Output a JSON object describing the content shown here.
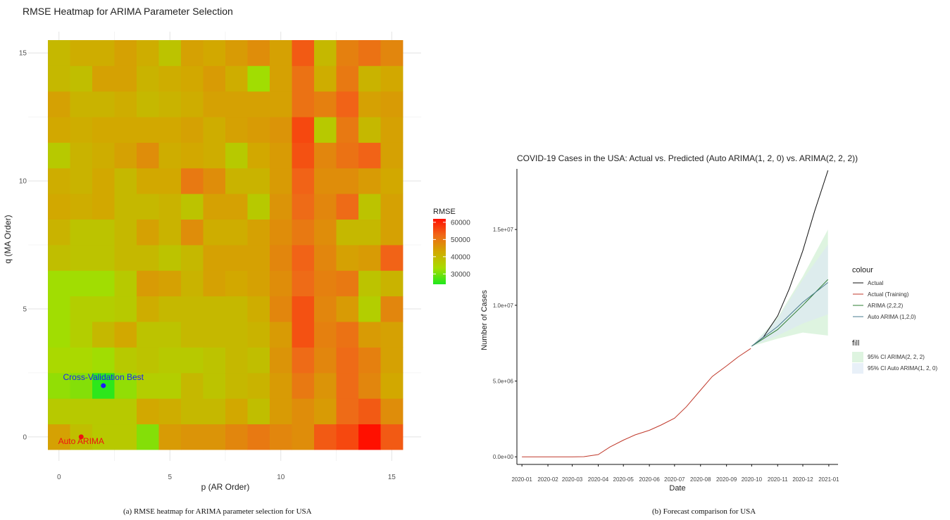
{
  "chart_data": [
    {
      "type": "heatmap",
      "title": "RMSE Heatmap for ARIMA Parameter Selection",
      "xlabel": "p (AR Order)",
      "ylabel": "q (MA Order)",
      "xlim": [
        -0.5,
        15.5
      ],
      "ylim": [
        -0.5,
        15.5
      ],
      "xticks": [
        0,
        5,
        10,
        15
      ],
      "yticks": [
        0,
        5,
        10,
        15
      ],
      "grid": true,
      "legend": {
        "title": "RMSE",
        "position": "right",
        "range": [
          24000,
          62000
        ],
        "ticks": [
          30000,
          40000,
          50000,
          60000
        ],
        "colors": [
          "#1ee81e",
          "#a8dc00",
          "#d2a800",
          "#f06818",
          "#ff1000"
        ]
      },
      "values_note_rows": "rows are q = 0..15 (bottom to top), columns are p = 0..15 (left to right)",
      "values": [
        [
          44000,
          39000,
          37000,
          37000,
          31000,
          45000,
          46000,
          46000,
          48000,
          50000,
          48000,
          47000,
          54000,
          56000,
          62000,
          54000
        ],
        [
          37000,
          37000,
          37000,
          37000,
          43000,
          42000,
          40000,
          40000,
          43000,
          39000,
          45000,
          47000,
          45000,
          52000,
          54000,
          47000
        ],
        [
          32000,
          31000,
          25000,
          32000,
          36000,
          36000,
          40000,
          38000,
          40000,
          41000,
          45000,
          50000,
          46000,
          52000,
          48000,
          43000
        ],
        [
          34000,
          34000,
          33000,
          37000,
          38000,
          37000,
          37000,
          38000,
          40000,
          39000,
          46000,
          52000,
          48000,
          52000,
          49000,
          44000
        ],
        [
          33000,
          36000,
          40000,
          43000,
          38000,
          38000,
          40000,
          40000,
          40000,
          41000,
          45000,
          55000,
          49000,
          51000,
          45000,
          44000
        ],
        [
          33000,
          36000,
          36000,
          37000,
          42000,
          40000,
          40000,
          40000,
          40000,
          42000,
          48000,
          55000,
          48000,
          45000,
          36000,
          48000
        ],
        [
          33000,
          33000,
          33000,
          37000,
          45000,
          44000,
          41000,
          44000,
          43000,
          44000,
          47000,
          52000,
          49000,
          50000,
          38000,
          41000
        ],
        [
          39000,
          38000,
          38000,
          40000,
          40000,
          38000,
          40000,
          44000,
          44000,
          44000,
          48000,
          53000,
          48000,
          44000,
          45000,
          53000
        ],
        [
          41000,
          38000,
          38000,
          40000,
          44000,
          41000,
          47000,
          42000,
          42000,
          44000,
          47000,
          50000,
          47000,
          40000,
          40000,
          44000
        ],
        [
          43000,
          42000,
          43000,
          40000,
          40000,
          41000,
          38000,
          44000,
          44000,
          37000,
          46000,
          52000,
          48000,
          52000,
          38000,
          44000
        ],
        [
          42000,
          41000,
          43000,
          40000,
          43000,
          43000,
          50000,
          47000,
          41000,
          41000,
          45000,
          53000,
          47000,
          47000,
          45000,
          43000
        ],
        [
          37000,
          41000,
          42000,
          44000,
          47000,
          42000,
          43000,
          42000,
          37000,
          43000,
          45000,
          55000,
          48000,
          51000,
          53000,
          44000
        ],
        [
          43000,
          42000,
          43000,
          43000,
          43000,
          43000,
          44000,
          42000,
          44000,
          45000,
          46000,
          56000,
          37000,
          50000,
          40000,
          44000
        ],
        [
          44000,
          41000,
          41000,
          42000,
          40000,
          41000,
          42000,
          44000,
          44000,
          44000,
          44000,
          51000,
          49000,
          53000,
          44000,
          45000
        ],
        [
          40000,
          39000,
          44000,
          44000,
          41000,
          42000,
          43000,
          45000,
          42000,
          33000,
          44000,
          51000,
          42000,
          50000,
          41000,
          43000
        ],
        [
          40000,
          42000,
          42000,
          44000,
          42000,
          38000,
          44000,
          43000,
          45000,
          47000,
          44000,
          54000,
          40000,
          49000,
          51000,
          48000
        ]
      ],
      "annotations": [
        {
          "label": "Cross-Validation Best",
          "p": 2,
          "q": 2,
          "color": "#1a1aff"
        },
        {
          "label": "Auto ARIMA",
          "p": 1,
          "q": 0,
          "color": "#ee1111"
        }
      ],
      "caption": "(a) RMSE heatmap for ARIMA parameter selection for USA"
    },
    {
      "type": "line",
      "title": "COVID-19 Cases in the USA: Actual vs. Predicted (Auto ARIMA(1, 2, 0) vs. ARIMA(2, 2, 2))",
      "xlabel": "Date",
      "ylabel": "Number of Cases",
      "xlim": [
        "2019-12-26",
        "2021-01-12"
      ],
      "ylim": [
        -500000,
        19000000
      ],
      "x_tick_labels": [
        "2020-01",
        "2020-02",
        "2020-03",
        "2020-04",
        "2020-05",
        "2020-06",
        "2020-07",
        "2020-08",
        "2020-09",
        "2020-10",
        "2020-11",
        "2020-12",
        "2021-01"
      ],
      "x_tick_dates": [
        "2020-01-01",
        "2020-02-01",
        "2020-03-01",
        "2020-04-01",
        "2020-05-01",
        "2020-06-01",
        "2020-07-01",
        "2020-08-01",
        "2020-09-01",
        "2020-10-01",
        "2020-11-01",
        "2020-12-01",
        "2021-01-01"
      ],
      "y_ticks": [
        0,
        5000000,
        10000000,
        15000000
      ],
      "y_tick_labels": [
        "0.0e+00",
        "5.0e+06",
        "1.0e+07",
        "1.5e+07"
      ],
      "grid": false,
      "legend_position": "right",
      "legend_colour_title": "colour",
      "legend_fill_title": "fill",
      "series": [
        {
          "name": "Actual",
          "color": "#111111",
          "x": [
            "2020-10-01",
            "2020-10-15",
            "2020-11-01",
            "2020-11-15",
            "2020-12-01",
            "2020-12-15",
            "2020-12-31"
          ],
          "values": [
            7300000,
            7900000,
            9300000,
            11100000,
            13600000,
            16200000,
            18900000
          ]
        },
        {
          "name": "Actual (Training)",
          "color": "#c0392b",
          "x": [
            "2020-01-01",
            "2020-02-01",
            "2020-03-01",
            "2020-03-15",
            "2020-04-01",
            "2020-04-15",
            "2020-05-01",
            "2020-05-15",
            "2020-06-01",
            "2020-06-15",
            "2020-07-01",
            "2020-07-15",
            "2020-08-01",
            "2020-08-15",
            "2020-09-01",
            "2020-09-15",
            "2020-09-30"
          ],
          "values": [
            0,
            0,
            0,
            10000,
            150000,
            650000,
            1100000,
            1450000,
            1750000,
            2100000,
            2550000,
            3300000,
            4400000,
            5300000,
            6000000,
            6600000,
            7150000
          ]
        },
        {
          "name": "ARIMA (2,2,2)",
          "color": "#2e7d32",
          "x": [
            "2020-10-01",
            "2020-11-01",
            "2020-12-01",
            "2020-12-31"
          ],
          "values": [
            7300000,
            8400000,
            10000000,
            11700000
          ]
        },
        {
          "name": "Auto ARIMA (1,2,0)",
          "color": "#4a7d8f",
          "x": [
            "2020-10-01",
            "2020-11-01",
            "2020-12-01",
            "2020-12-31"
          ],
          "values": [
            7300000,
            8600000,
            10200000,
            11500000
          ]
        }
      ],
      "bands": [
        {
          "name": "95% CI ARIMA(2, 2, 2)",
          "color": "#cdeecf",
          "x": [
            "2020-10-01",
            "2020-11-01",
            "2020-12-01",
            "2020-12-31"
          ],
          "lower": [
            7300000,
            7800000,
            8200000,
            8000000
          ],
          "upper": [
            7300000,
            9200000,
            11900000,
            15000000
          ]
        },
        {
          "name": "95% CI Auto ARIMA(1, 2, 0)",
          "color": "#dce8f4",
          "x": [
            "2020-10-01",
            "2020-11-01",
            "2020-12-01",
            "2020-12-31"
          ],
          "lower": [
            7300000,
            8000000,
            8800000,
            9400000
          ],
          "upper": [
            7300000,
            9100000,
            11700000,
            14000000
          ]
        }
      ],
      "caption": "(b) Forecast comparison for USA"
    }
  ]
}
